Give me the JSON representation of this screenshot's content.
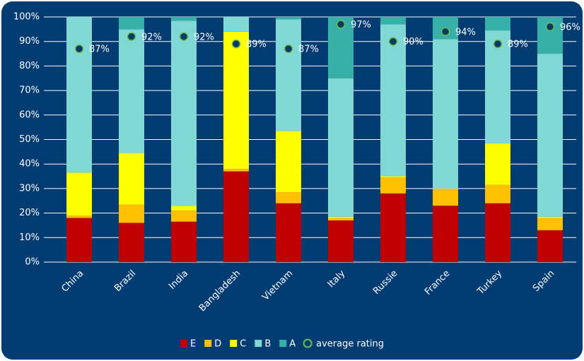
{
  "chart_data": {
    "type": "bar",
    "stacked": true,
    "categories": [
      "China",
      "Brazil",
      "India",
      "Bangladesh",
      "Vietnam",
      "Italy",
      "Russie",
      "France",
      "Turkey",
      "Spain"
    ],
    "series": [
      {
        "name": "E",
        "color": "#c00000",
        "values": [
          18,
          16,
          16.5,
          37,
          24,
          17,
          28,
          23,
          24,
          13
        ]
      },
      {
        "name": "D",
        "color": "#ffc000",
        "values": [
          1,
          7.5,
          4.5,
          1,
          4.5,
          1,
          6.5,
          7,
          7.5,
          5
        ]
      },
      {
        "name": "C",
        "color": "#ffff00",
        "values": [
          17.5,
          21,
          2,
          56,
          25,
          0.5,
          0.5,
          0,
          17,
          0.5
        ]
      },
      {
        "name": "B",
        "color": "#80d8d4",
        "values": [
          63.5,
          50.5,
          75.5,
          6,
          45.5,
          56.5,
          62,
          61,
          46,
          66.5
        ]
      },
      {
        "name": "A",
        "color": "#36b0a8",
        "values": [
          0,
          5,
          1.5,
          0,
          1,
          25,
          3,
          9,
          5.5,
          15
        ]
      }
    ],
    "markers": {
      "name": "average rating",
      "type": "scatter",
      "color": "#0b3a6a",
      "edgecolor": "#6cc04a",
      "values": [
        87,
        92,
        92,
        89,
        87,
        97,
        90,
        94,
        89,
        96
      ],
      "value_labels": [
        "87%",
        "92%",
        "92%",
        "89%",
        "87%",
        "97%",
        "90%",
        "94%",
        "89%",
        "96%"
      ]
    },
    "ylim": [
      0,
      100
    ],
    "yticks": [
      {
        "value": 0,
        "label": "0%"
      },
      {
        "value": 10,
        "label": "10%"
      },
      {
        "value": 20,
        "label": "20%"
      },
      {
        "value": 30,
        "label": "30%"
      },
      {
        "value": 40,
        "label": "40%"
      },
      {
        "value": 50,
        "label": "50%"
      },
      {
        "value": 60,
        "label": "60%"
      },
      {
        "value": 70,
        "label": "70%"
      },
      {
        "value": 80,
        "label": "80%"
      },
      {
        "value": 90,
        "label": "90%"
      },
      {
        "value": 100,
        "label": "100%"
      }
    ],
    "grid": true,
    "legend": "bottom"
  }
}
